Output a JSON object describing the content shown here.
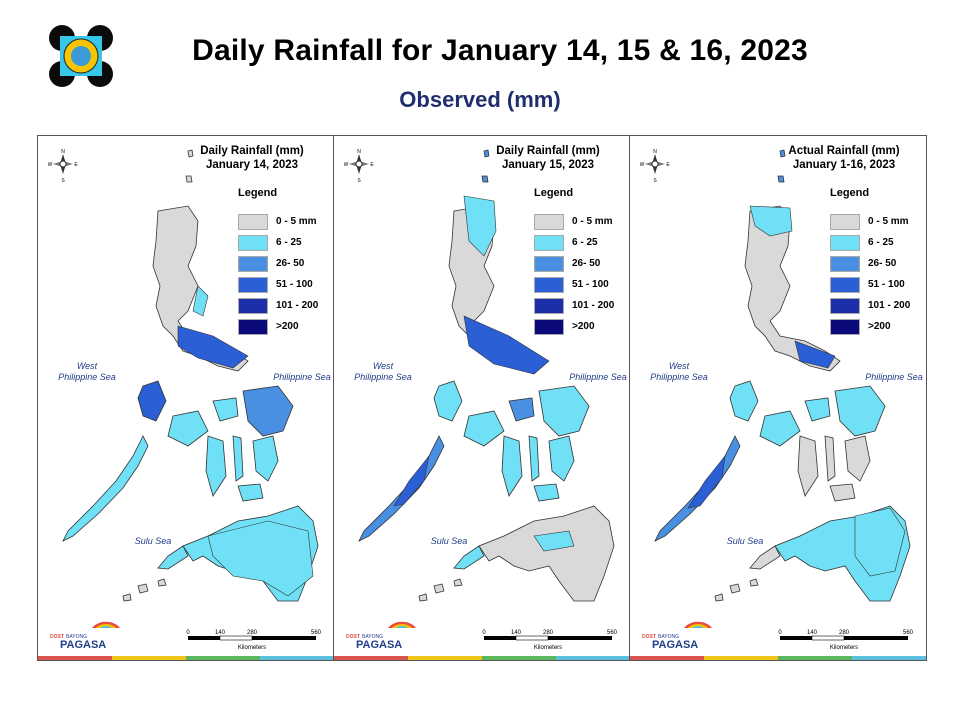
{
  "header": {
    "title": "Daily Rainfall for January 14, 15 & 16, 2023",
    "subtitle": "Observed (mm)",
    "logo_icon": "pagasa-seal-icon"
  },
  "legend": {
    "title": "Legend",
    "items": [
      {
        "label": "0 - 5 mm",
        "color": "#d9d9d9"
      },
      {
        "label": "6 - 25",
        "color": "#6fe0f5"
      },
      {
        "label": "26- 50",
        "color": "#4a90e2"
      },
      {
        "label": "51 - 100",
        "color": "#2b5fd6"
      },
      {
        "label": "101 - 200",
        "color": "#1d2fa8"
      },
      {
        "label": ">200",
        "color": "#0a0a7a"
      }
    ]
  },
  "panels": [
    {
      "title_line1": "Daily Rainfall (mm)",
      "title_line2": "January 14, 2023"
    },
    {
      "title_line1": "Daily Rainfall (mm)",
      "title_line2": "January 15, 2023"
    },
    {
      "title_line1": "Actual Rainfall (mm)",
      "title_line2": "January 1-16, 2023"
    }
  ],
  "seas": {
    "west": "West\nPhilippine Sea",
    "east": "Philippine Sea",
    "sulu": "Sulu Sea"
  },
  "scale": {
    "ticks": [
      "0",
      "140",
      "280",
      "560"
    ],
    "unit": "Kilometers"
  },
  "compass_letters": {
    "n": "N",
    "s": "S",
    "e": "E",
    "w": "W"
  },
  "footer": {
    "brand": "PAGASA",
    "prefix": "DOST",
    "tagline": "BAYONG"
  }
}
